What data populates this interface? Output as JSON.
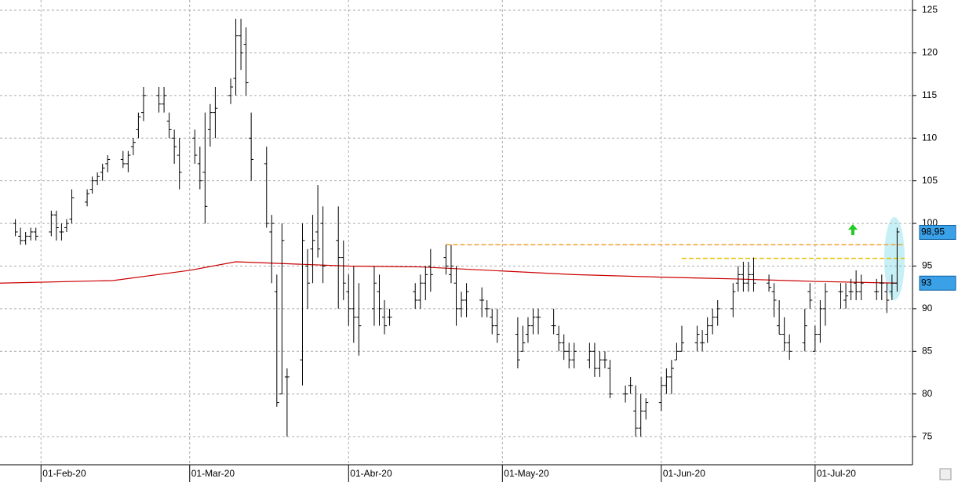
{
  "chart_data": {
    "type": "ohlc",
    "xlim": [
      "2020-01-24",
      "2020-07-20"
    ],
    "ylim": [
      71.7,
      126.2
    ],
    "yticks": [
      75,
      80,
      85,
      90,
      95,
      100,
      105,
      110,
      115,
      120,
      125
    ],
    "xticks": [
      {
        "value": "2020-02-01",
        "label": "01-Feb-20"
      },
      {
        "value": "2020-03-01",
        "label": "01-Mar-20"
      },
      {
        "value": "2020-04-01",
        "label": "01-Abr-20"
      },
      {
        "value": "2020-05-01",
        "label": "01-May-20"
      },
      {
        "value": "2020-06-01",
        "label": "01-Jun-20"
      },
      {
        "value": "2020-07-01",
        "label": "01-Jul-20"
      }
    ],
    "grid": true,
    "color": "#000000",
    "x": [
      "2020-01-27",
      "2020-01-28",
      "2020-01-29",
      "2020-01-30",
      "2020-01-31",
      "2020-02-03",
      "2020-02-04",
      "2020-02-05",
      "2020-02-06",
      "2020-02-07",
      "2020-02-10",
      "2020-02-11",
      "2020-02-12",
      "2020-02-13",
      "2020-02-14",
      "2020-02-17",
      "2020-02-18",
      "2020-02-19",
      "2020-02-20",
      "2020-02-21",
      "2020-02-24",
      "2020-02-25",
      "2020-02-26",
      "2020-02-27",
      "2020-02-28",
      "2020-03-02",
      "2020-03-03",
      "2020-03-04",
      "2020-03-05",
      "2020-03-06",
      "2020-03-09",
      "2020-03-10",
      "2020-03-11",
      "2020-03-12",
      "2020-03-13",
      "2020-03-16",
      "2020-03-17",
      "2020-03-18",
      "2020-03-19",
      "2020-03-20",
      "2020-03-23",
      "2020-03-24",
      "2020-03-25",
      "2020-03-26",
      "2020-03-27",
      "2020-03-30",
      "2020-03-31",
      "2020-04-01",
      "2020-04-02",
      "2020-04-03",
      "2020-04-06",
      "2020-04-07",
      "2020-04-08",
      "2020-04-09",
      "2020-04-14",
      "2020-04-15",
      "2020-04-16",
      "2020-04-17",
      "2020-04-20",
      "2020-04-21",
      "2020-04-22",
      "2020-04-23",
      "2020-04-24",
      "2020-04-27",
      "2020-04-28",
      "2020-04-29",
      "2020-04-30",
      "2020-05-04",
      "2020-05-05",
      "2020-05-06",
      "2020-05-07",
      "2020-05-08",
      "2020-05-11",
      "2020-05-12",
      "2020-05-13",
      "2020-05-14",
      "2020-05-15",
      "2020-05-18",
      "2020-05-19",
      "2020-05-20",
      "2020-05-21",
      "2020-05-22",
      "2020-05-25",
      "2020-05-26",
      "2020-05-27",
      "2020-05-28",
      "2020-05-29",
      "2020-06-01",
      "2020-06-02",
      "2020-06-03",
      "2020-06-04",
      "2020-06-05",
      "2020-06-08",
      "2020-06-09",
      "2020-06-10",
      "2020-06-11",
      "2020-06-12",
      "2020-06-15",
      "2020-06-16",
      "2020-06-17",
      "2020-06-18",
      "2020-06-19",
      "2020-06-22",
      "2020-06-23",
      "2020-06-24",
      "2020-06-25",
      "2020-06-26",
      "2020-06-29",
      "2020-06-30",
      "2020-07-01",
      "2020-07-02",
      "2020-07-03",
      "2020-07-06",
      "2020-07-07",
      "2020-07-08",
      "2020-07-09",
      "2020-07-10",
      "2020-07-13",
      "2020-07-14",
      "2020-07-15",
      "2020-07-16",
      "2020-07-17"
    ],
    "ohlc": [
      [
        100,
        100.5,
        98.5,
        99
      ],
      [
        98.5,
        99.5,
        97.5,
        98
      ],
      [
        98,
        99,
        97.5,
        98.5
      ],
      [
        98.5,
        99.5,
        98,
        99
      ],
      [
        99,
        99.5,
        98,
        98.5
      ],
      [
        99,
        101.5,
        98.5,
        101
      ],
      [
        101,
        101.5,
        98,
        99.5
      ],
      [
        99,
        100,
        98,
        99
      ],
      [
        99.5,
        100.5,
        99,
        100
      ],
      [
        100.5,
        104,
        100,
        103
      ],
      [
        102.5,
        104,
        102,
        103.5
      ],
      [
        104,
        105.5,
        103.5,
        105
      ],
      [
        105,
        106,
        104.5,
        105.5
      ],
      [
        106,
        107,
        105,
        106.5
      ],
      [
        107,
        108,
        106,
        107.5
      ],
      [
        107.5,
        108.5,
        106.5,
        107
      ],
      [
        107,
        108.5,
        106,
        108
      ],
      [
        109,
        110,
        108,
        109.5
      ],
      [
        111,
        113,
        110,
        112.5
      ],
      [
        113,
        116,
        112,
        115
      ],
      [
        115,
        116,
        113,
        114
      ],
      [
        114,
        116,
        113,
        115
      ],
      [
        112,
        113,
        110,
        111
      ],
      [
        110,
        111,
        107,
        109
      ],
      [
        108,
        110,
        104,
        106
      ],
      [
        110,
        111,
        107,
        108
      ],
      [
        107,
        109,
        104,
        105
      ],
      [
        106,
        113,
        100,
        102
      ],
      [
        111,
        114,
        109,
        113
      ],
      [
        113,
        116,
        110,
        113.5
      ],
      [
        115,
        117,
        114,
        116
      ],
      [
        117,
        124,
        115,
        122
      ],
      [
        122,
        124,
        118,
        120
      ],
      [
        121,
        123,
        115,
        116.5
      ],
      [
        110,
        113,
        105,
        107.5
      ],
      [
        107,
        109,
        99.5,
        100
      ],
      [
        99,
        101,
        93,
        100
      ],
      [
        92,
        94,
        78.5,
        79
      ],
      [
        80,
        100,
        80,
        98
      ],
      [
        82,
        83,
        75,
        82
      ],
      [
        84,
        100,
        81,
        98
      ],
      [
        95,
        97,
        90,
        93
      ],
      [
        97,
        101,
        93,
        98
      ],
      [
        99,
        104.5,
        96,
        97
      ],
      [
        100,
        102,
        93,
        95
      ],
      [
        98,
        102,
        90,
        96
      ],
      [
        96,
        98,
        91,
        93
      ],
      [
        92,
        94,
        88,
        90
      ],
      [
        90,
        95,
        86,
        89
      ],
      [
        89,
        93,
        84.5,
        88
      ],
      [
        90,
        95,
        88,
        93
      ],
      [
        92,
        94,
        88,
        90
      ],
      [
        89,
        91,
        87,
        88
      ],
      [
        89,
        90,
        88,
        89
      ],
      [
        92,
        93,
        90,
        91
      ],
      [
        91,
        94,
        90,
        93
      ],
      [
        93,
        95,
        91,
        94
      ],
      [
        95,
        97,
        92,
        94
      ],
      [
        96,
        97.5,
        94,
        95
      ],
      [
        94,
        97.5,
        93,
        95
      ],
      [
        93,
        95,
        88,
        90
      ],
      [
        90,
        92,
        89,
        91
      ],
      [
        91,
        93,
        89,
        92
      ],
      [
        91,
        92.5,
        89,
        91
      ],
      [
        90,
        91,
        89,
        90
      ],
      [
        89,
        90,
        87,
        88
      ],
      [
        88,
        90,
        86,
        87
      ],
      [
        87,
        89,
        83,
        84
      ],
      [
        85,
        88,
        85,
        86
      ],
      [
        87,
        89,
        86,
        88
      ],
      [
        88,
        90,
        87,
        89
      ],
      [
        89,
        90,
        87,
        89
      ],
      [
        88,
        90,
        87,
        88
      ],
      [
        87,
        88,
        85,
        86
      ],
      [
        86,
        87,
        84,
        85
      ],
      [
        85,
        86,
        83,
        84
      ],
      [
        84,
        86,
        83,
        85
      ],
      [
        84,
        86,
        83,
        85
      ],
      [
        85,
        86,
        82,
        83
      ],
      [
        83,
        85,
        82,
        84
      ],
      [
        84,
        85,
        83,
        84
      ],
      [
        83,
        84,
        79.5,
        80
      ],
      [
        80,
        81,
        79,
        80
      ],
      [
        81,
        82,
        80,
        81
      ],
      [
        78,
        81,
        75,
        76
      ],
      [
        76,
        80,
        75,
        78
      ],
      [
        78,
        79.5,
        77,
        79
      ],
      [
        79,
        82,
        78,
        81
      ],
      [
        81,
        83,
        80,
        82
      ],
      [
        82,
        84,
        80,
        83
      ],
      [
        84,
        86,
        84,
        85
      ],
      [
        85,
        88,
        85,
        86
      ],
      [
        86,
        88,
        85,
        87
      ],
      [
        86,
        87.5,
        85,
        86
      ],
      [
        87,
        89,
        86,
        88
      ],
      [
        88,
        90,
        87,
        89
      ],
      [
        89,
        91,
        88,
        90
      ],
      [
        90,
        93,
        89,
        92
      ],
      [
        93,
        95,
        92,
        94
      ],
      [
        94,
        95.5,
        92,
        93
      ],
      [
        93,
        95.5,
        92,
        94
      ],
      [
        94,
        96,
        92,
        93
      ],
      [
        93,
        94,
        92,
        92.5
      ],
      [
        92,
        93,
        89,
        91
      ],
      [
        88,
        91,
        87,
        87
      ],
      [
        87,
        89,
        85,
        86
      ],
      [
        86,
        87,
        84,
        85
      ],
      [
        86,
        90,
        85,
        88
      ],
      [
        92,
        93,
        90,
        91
      ],
      [
        85,
        88,
        85,
        87
      ],
      [
        87,
        91,
        86,
        90
      ],
      [
        90,
        93,
        88,
        92
      ],
      [
        92,
        93,
        90,
        92
      ],
      [
        91,
        93,
        90,
        91.5
      ],
      [
        92,
        93.5,
        91,
        92
      ],
      [
        93,
        94.5,
        91,
        92
      ],
      [
        92,
        94,
        91,
        93
      ],
      [
        92,
        93.5,
        91,
        92
      ],
      [
        93,
        94,
        91,
        93
      ],
      [
        92,
        93,
        89.5,
        91
      ],
      [
        92,
        94,
        91,
        93
      ],
      [
        93,
        99.5,
        92,
        99
      ]
    ],
    "ma": {
      "color": "#cc0000",
      "x": [
        "2020-01-24",
        "2020-02-15",
        "2020-03-01",
        "2020-03-10",
        "2020-04-01",
        "2020-04-15",
        "2020-05-15",
        "2020-06-01",
        "2020-06-15",
        "2020-07-01",
        "2020-07-17"
      ],
      "values": [
        93,
        93.3,
        94.5,
        95.5,
        95,
        94.9,
        94,
        93.7,
        93.5,
        93.2,
        93
      ]
    },
    "levels": [
      {
        "value": 97.5,
        "start": "2020-04-20",
        "color": "#f0a030"
      },
      {
        "value": 95.9,
        "start": "2020-06-05",
        "color": "#e8c000"
      }
    ],
    "price_labels": [
      {
        "value": 98.95,
        "label": "98,95"
      },
      {
        "value": 93,
        "label": "93"
      }
    ]
  }
}
